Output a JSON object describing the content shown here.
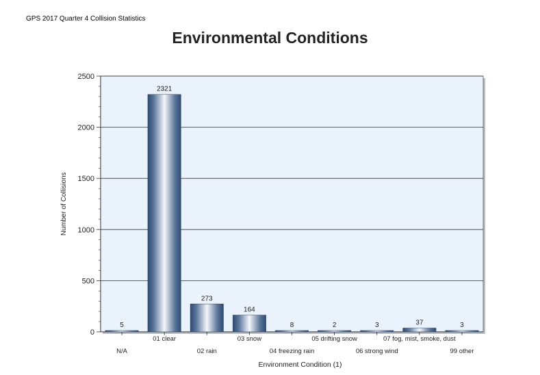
{
  "document": {
    "header": "GPS 2017 Quarter 4 Collision Statistics"
  },
  "chart_data": {
    "type": "bar",
    "title": "Environmental Conditions",
    "xlabel": "Environment Condition (1)",
    "ylabel": "Number of Collisions",
    "ylim": [
      0,
      2500
    ],
    "yticks": [
      0,
      500,
      1000,
      1500,
      2000,
      2500
    ],
    "grid": true,
    "legend": "none",
    "categories": [
      "N/A",
      "01 clear",
      "02 rain",
      "03 snow",
      "04 freezing rain",
      "05 drifting snow",
      "06 strong wind",
      "07 fog, mist, smoke, dust",
      "99 other"
    ],
    "values": [
      5,
      2321,
      273,
      164,
      8,
      2,
      3,
      37,
      3
    ],
    "colors": {
      "plot_background": "#eaf3fb",
      "bar_dark": "#2e4a70",
      "bar_light": "#f4f7fb",
      "gridline": "#333333"
    }
  }
}
